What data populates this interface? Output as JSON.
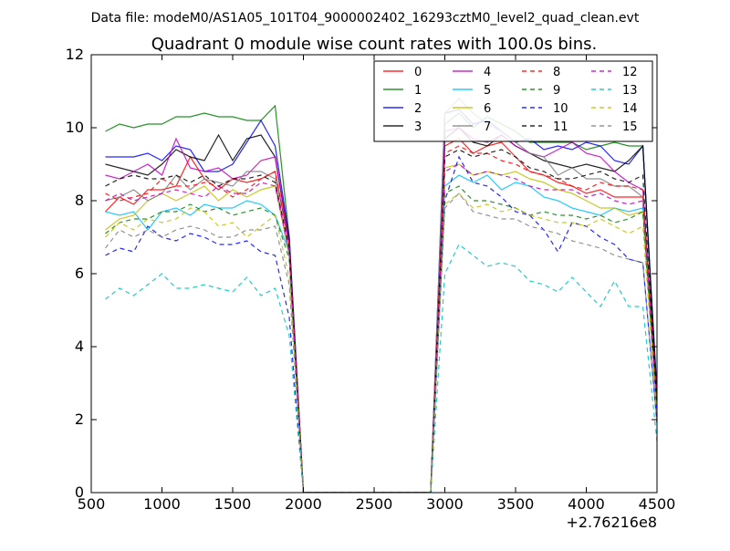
{
  "chart_data": {
    "type": "line",
    "suptitle": "Data file: modeM0/AS1A05_101T04_9000002402_16293cztM0_level2_quad_clean.evt",
    "title": "Quadrant 0 module wise count rates with 100.0s bins.",
    "xlabel": "",
    "ylabel": "",
    "x_offset_label": "+2.76216e8",
    "xlim": [
      500,
      4500
    ],
    "ylim": [
      0,
      12
    ],
    "xticks": [
      500,
      1000,
      1500,
      2000,
      2500,
      3000,
      3500,
      4000,
      4500
    ],
    "yticks": [
      0,
      2,
      4,
      6,
      8,
      10,
      12
    ],
    "legend_position": "top-right",
    "x": [
      600,
      700,
      800,
      900,
      1000,
      1100,
      1200,
      1300,
      1400,
      1500,
      1600,
      1700,
      1800,
      1900,
      2000,
      2100,
      2200,
      2300,
      2400,
      2500,
      2600,
      2700,
      2800,
      2900,
      3000,
      3100,
      3200,
      3300,
      3400,
      3500,
      3600,
      3700,
      3800,
      3900,
      4000,
      4100,
      4200,
      4300,
      4400,
      4500
    ],
    "series": [
      {
        "name": "0",
        "color": "#ff0000",
        "dash": "solid",
        "values": [
          7.7,
          8.1,
          7.9,
          8.3,
          8.3,
          8.4,
          9.2,
          8.6,
          8.3,
          8.6,
          8.5,
          8.6,
          8.8,
          6.8,
          0,
          0,
          0,
          0,
          0,
          0,
          0,
          0,
          0,
          0,
          9.5,
          9.7,
          9.3,
          9.5,
          9.6,
          9.2,
          8.8,
          8.7,
          8.5,
          8.4,
          8.2,
          8.3,
          8.1,
          8.1,
          8.1,
          2.4
        ]
      },
      {
        "name": "1",
        "color": "#008000",
        "dash": "solid",
        "values": [
          9.9,
          10.1,
          10.0,
          10.1,
          10.1,
          10.3,
          10.3,
          10.4,
          10.3,
          10.3,
          10.2,
          10.2,
          10.6,
          7.0,
          0,
          0,
          0,
          0,
          0,
          0,
          0,
          0,
          0,
          0,
          10.1,
          10.4,
          10.0,
          10.3,
          10.1,
          9.9,
          9.6,
          9.6,
          9.6,
          9.6,
          9.4,
          9.5,
          9.6,
          9.5,
          9.5,
          2.8
        ]
      },
      {
        "name": "2",
        "color": "#0000ff",
        "dash": "solid",
        "values": [
          9.2,
          9.2,
          9.2,
          9.3,
          9.1,
          9.5,
          9.4,
          8.8,
          8.8,
          9.0,
          9.6,
          10.2,
          9.5,
          7.0,
          0,
          0,
          0,
          0,
          0,
          0,
          0,
          0,
          0,
          0,
          10.4,
          10.5,
          10.1,
          10.2,
          9.9,
          9.6,
          9.7,
          9.4,
          9.5,
          9.4,
          9.6,
          9.5,
          9.1,
          9.0,
          9.5,
          2.7
        ]
      },
      {
        "name": "3",
        "color": "#000000",
        "dash": "solid",
        "values": [
          9.0,
          8.9,
          8.8,
          8.7,
          9.0,
          9.4,
          9.2,
          9.1,
          9.8,
          9.1,
          9.7,
          9.8,
          9.2,
          6.9,
          0,
          0,
          0,
          0,
          0,
          0,
          0,
          0,
          0,
          0,
          9.7,
          10.0,
          9.6,
          9.5,
          9.8,
          9.5,
          9.3,
          9.1,
          9.0,
          8.9,
          9.0,
          8.9,
          8.8,
          9.1,
          9.5,
          2.6
        ]
      },
      {
        "name": "4",
        "color": "#bf00bf",
        "dash": "solid",
        "values": [
          8.7,
          8.6,
          8.8,
          9.0,
          8.7,
          9.7,
          8.9,
          8.8,
          8.9,
          8.6,
          8.7,
          9.1,
          9.2,
          6.8,
          0,
          0,
          0,
          0,
          0,
          0,
          0,
          0,
          0,
          0,
          9.9,
          10.0,
          9.7,
          9.6,
          9.8,
          9.5,
          9.3,
          9.2,
          9.4,
          9.6,
          9.3,
          9.2,
          8.8,
          8.5,
          8.3,
          2.5
        ]
      },
      {
        "name": "5",
        "color": "#00bfff",
        "dash": "solid",
        "values": [
          7.7,
          7.6,
          7.7,
          7.2,
          7.7,
          7.8,
          7.6,
          7.9,
          7.8,
          7.8,
          8.0,
          7.9,
          7.6,
          6.6,
          0,
          0,
          0,
          0,
          0,
          0,
          0,
          0,
          0,
          0,
          8.4,
          8.7,
          8.5,
          8.7,
          8.3,
          8.5,
          8.4,
          8.1,
          8.0,
          7.8,
          7.7,
          7.6,
          7.8,
          7.7,
          7.8,
          2.2
        ]
      },
      {
        "name": "6",
        "color": "#bfbf00",
        "dash": "solid",
        "values": [
          7.2,
          7.5,
          7.6,
          8.0,
          8.2,
          8.0,
          8.2,
          8.4,
          8.0,
          8.3,
          8.1,
          8.3,
          8.4,
          6.5,
          0,
          0,
          0,
          0,
          0,
          0,
          0,
          0,
          0,
          0,
          8.9,
          9.0,
          8.7,
          8.8,
          8.7,
          8.8,
          8.6,
          8.5,
          8.3,
          8.2,
          8.0,
          7.8,
          7.8,
          7.6,
          7.7,
          2.3
        ]
      },
      {
        "name": "7",
        "color": "#808080",
        "dash": "solid",
        "values": [
          8.0,
          8.1,
          8.3,
          8.0,
          8.2,
          8.7,
          8.3,
          8.6,
          8.5,
          8.4,
          8.8,
          8.8,
          8.6,
          6.5,
          0,
          0,
          0,
          0,
          0,
          0,
          0,
          0,
          0,
          0,
          10.4,
          10.8,
          10.4,
          10.1,
          9.9,
          9.6,
          9.3,
          9.2,
          8.7,
          8.9,
          8.6,
          8.6,
          8.4,
          8.4,
          8.1,
          2.4
        ]
      },
      {
        "name": "8",
        "color": "#ff0000",
        "dash": "dashed",
        "values": [
          8.2,
          8.0,
          8.1,
          8.2,
          8.6,
          8.4,
          8.4,
          8.5,
          8.4,
          8.1,
          8.3,
          8.6,
          8.8,
          6.8,
          0,
          0,
          0,
          0,
          0,
          0,
          0,
          0,
          0,
          0,
          9.3,
          9.5,
          9.3,
          9.3,
          9.1,
          9.0,
          8.8,
          8.7,
          8.6,
          8.4,
          8.3,
          8.5,
          8.4,
          8.4,
          8.3,
          2.4
        ]
      },
      {
        "name": "9",
        "color": "#008000",
        "dash": "dashed",
        "values": [
          7.1,
          7.4,
          7.5,
          7.5,
          7.7,
          7.7,
          7.9,
          7.7,
          7.8,
          7.6,
          7.7,
          7.8,
          7.6,
          6.4,
          0,
          0,
          0,
          0,
          0,
          0,
          0,
          0,
          0,
          0,
          8.2,
          8.4,
          8.0,
          8.0,
          7.9,
          7.8,
          7.6,
          7.7,
          7.6,
          7.6,
          7.5,
          7.6,
          7.4,
          7.5,
          7.7,
          2.2
        ]
      },
      {
        "name": "10",
        "color": "#0000ff",
        "dash": "dashed",
        "values": [
          6.5,
          6.7,
          6.6,
          7.3,
          7.0,
          6.9,
          7.1,
          7.0,
          6.8,
          6.8,
          6.9,
          6.6,
          6.5,
          4.8,
          0,
          0,
          0,
          0,
          0,
          0,
          0,
          0,
          0,
          0,
          8.0,
          9.2,
          8.5,
          8.4,
          8.1,
          7.7,
          7.6,
          7.2,
          6.6,
          7.4,
          7.3,
          7.0,
          6.8,
          6.4,
          6.3,
          1.9
        ]
      },
      {
        "name": "11",
        "color": "#000000",
        "dash": "dashed",
        "values": [
          8.4,
          8.6,
          8.7,
          8.6,
          8.6,
          8.7,
          8.5,
          8.7,
          8.4,
          8.6,
          8.6,
          8.7,
          8.5,
          6.7,
          0,
          0,
          0,
          0,
          0,
          0,
          0,
          0,
          0,
          0,
          9.2,
          9.4,
          9.2,
          9.3,
          9.4,
          9.2,
          8.9,
          8.8,
          8.6,
          8.6,
          8.7,
          8.8,
          8.6,
          8.5,
          8.7,
          2.4
        ]
      },
      {
        "name": "12",
        "color": "#bf00bf",
        "dash": "dashed",
        "values": [
          8.0,
          8.2,
          8.0,
          8.1,
          8.2,
          8.3,
          8.2,
          8.1,
          8.4,
          8.2,
          8.2,
          8.5,
          8.4,
          6.6,
          0,
          0,
          0,
          0,
          0,
          0,
          0,
          0,
          0,
          0,
          8.8,
          9.0,
          8.7,
          8.8,
          8.7,
          8.6,
          8.4,
          8.3,
          8.3,
          8.3,
          8.1,
          8.2,
          8.0,
          7.9,
          8.0,
          2.3
        ]
      },
      {
        "name": "13",
        "color": "#00bfbf",
        "dash": "dashed",
        "values": [
          5.3,
          5.6,
          5.4,
          5.7,
          6.0,
          5.6,
          5.6,
          5.7,
          5.6,
          5.5,
          5.9,
          5.4,
          5.6,
          4.3,
          0,
          0,
          0,
          0,
          0,
          0,
          0,
          0,
          0,
          0,
          6.0,
          6.8,
          6.5,
          6.2,
          6.3,
          6.2,
          5.8,
          5.7,
          5.5,
          5.9,
          5.5,
          5.1,
          5.8,
          5.1,
          5.1,
          1.4
        ]
      },
      {
        "name": "14",
        "color": "#bfbf00",
        "dash": "dashed",
        "values": [
          7.0,
          7.4,
          7.2,
          7.5,
          7.4,
          7.5,
          7.8,
          7.7,
          7.3,
          7.4,
          7.0,
          7.3,
          7.6,
          5.9,
          0,
          0,
          0,
          0,
          0,
          0,
          0,
          0,
          0,
          0,
          7.9,
          8.2,
          7.8,
          7.9,
          7.7,
          7.8,
          7.6,
          7.5,
          7.4,
          7.4,
          7.3,
          7.5,
          7.3,
          7.1,
          7.3,
          2.1
        ]
      },
      {
        "name": "15",
        "color": "#808080",
        "dash": "dashed",
        "values": [
          6.7,
          7.2,
          7.0,
          7.2,
          7.0,
          7.2,
          7.3,
          7.2,
          7.0,
          7.0,
          7.2,
          7.2,
          7.3,
          5.7,
          0,
          0,
          0,
          0,
          0,
          0,
          0,
          0,
          0,
          0,
          7.8,
          8.2,
          7.7,
          7.6,
          7.5,
          7.5,
          7.3,
          7.2,
          7.1,
          6.9,
          6.8,
          6.7,
          6.5,
          6.4,
          6.3,
          1.9
        ]
      }
    ]
  }
}
